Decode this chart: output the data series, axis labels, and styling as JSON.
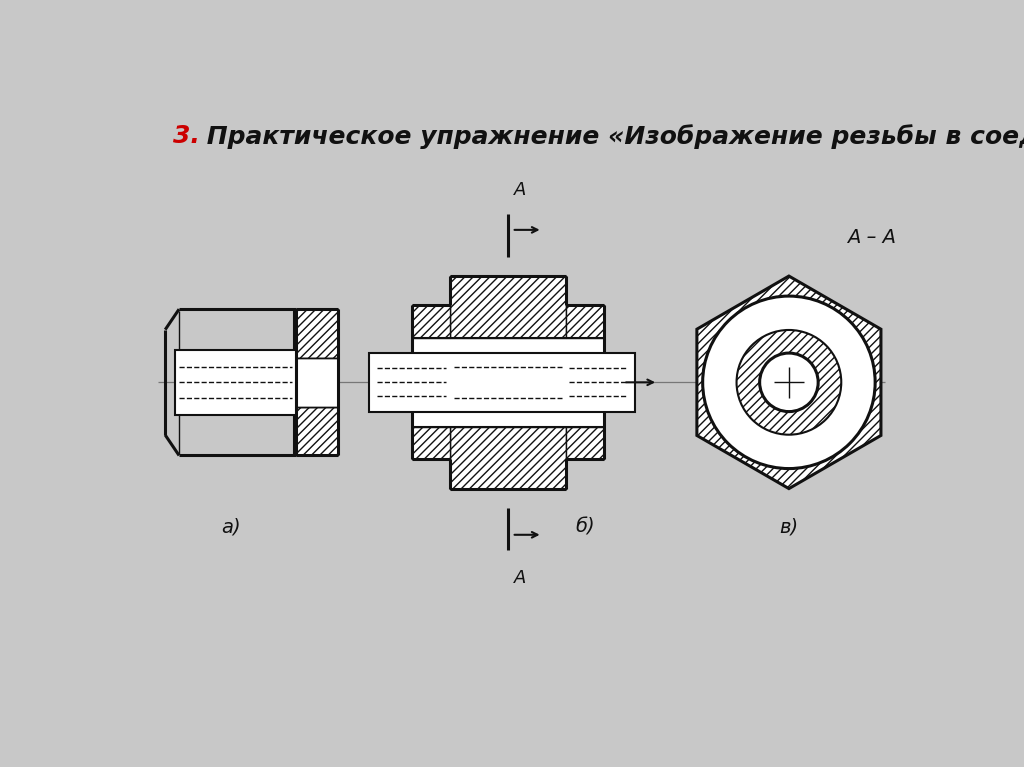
{
  "title_number": "3.",
  "title_text": " Практическое упражнение «Изображение резьбы в соединении»",
  "title_color_number": "#cc0000",
  "title_color_text": "#111111",
  "bg_color": "#c8c8c8",
  "drawing_bg": "#c8c8c8",
  "label_a": "а)",
  "label_b": "б)",
  "label_v": "в)",
  "label_AA": "А – А",
  "section_A": "А",
  "line_color": "#111111",
  "hatch_color": "#111111"
}
